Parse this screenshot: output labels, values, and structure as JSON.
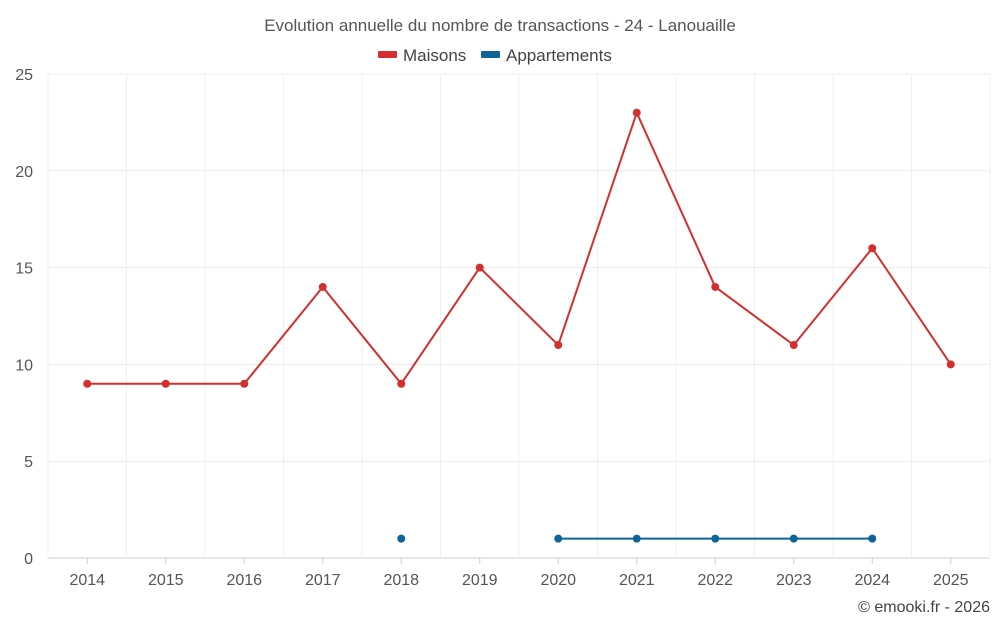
{
  "chart_data": {
    "type": "line",
    "title": "Evolution annuelle du nombre de transactions - 24 - Lanouaille",
    "categories": [
      "2014",
      "2015",
      "2016",
      "2017",
      "2018",
      "2019",
      "2020",
      "2021",
      "2022",
      "2023",
      "2024",
      "2025"
    ],
    "series": [
      {
        "name": "Maisons",
        "color": "#d32f2f",
        "values": [
          9,
          9,
          9,
          14,
          9,
          15,
          11,
          23,
          14,
          11,
          16,
          10
        ]
      },
      {
        "name": "Appartements",
        "color": "#0d6496",
        "values": [
          null,
          null,
          null,
          null,
          1,
          null,
          1,
          1,
          1,
          1,
          1,
          null
        ]
      }
    ],
    "ylim": [
      0,
      25
    ],
    "yticks": [
      "0",
      "5",
      "10",
      "15",
      "20",
      "25"
    ],
    "grid": true,
    "legend": "top-center",
    "xlabel": "",
    "ylabel": ""
  },
  "credit": "© emooki.fr - 2026"
}
